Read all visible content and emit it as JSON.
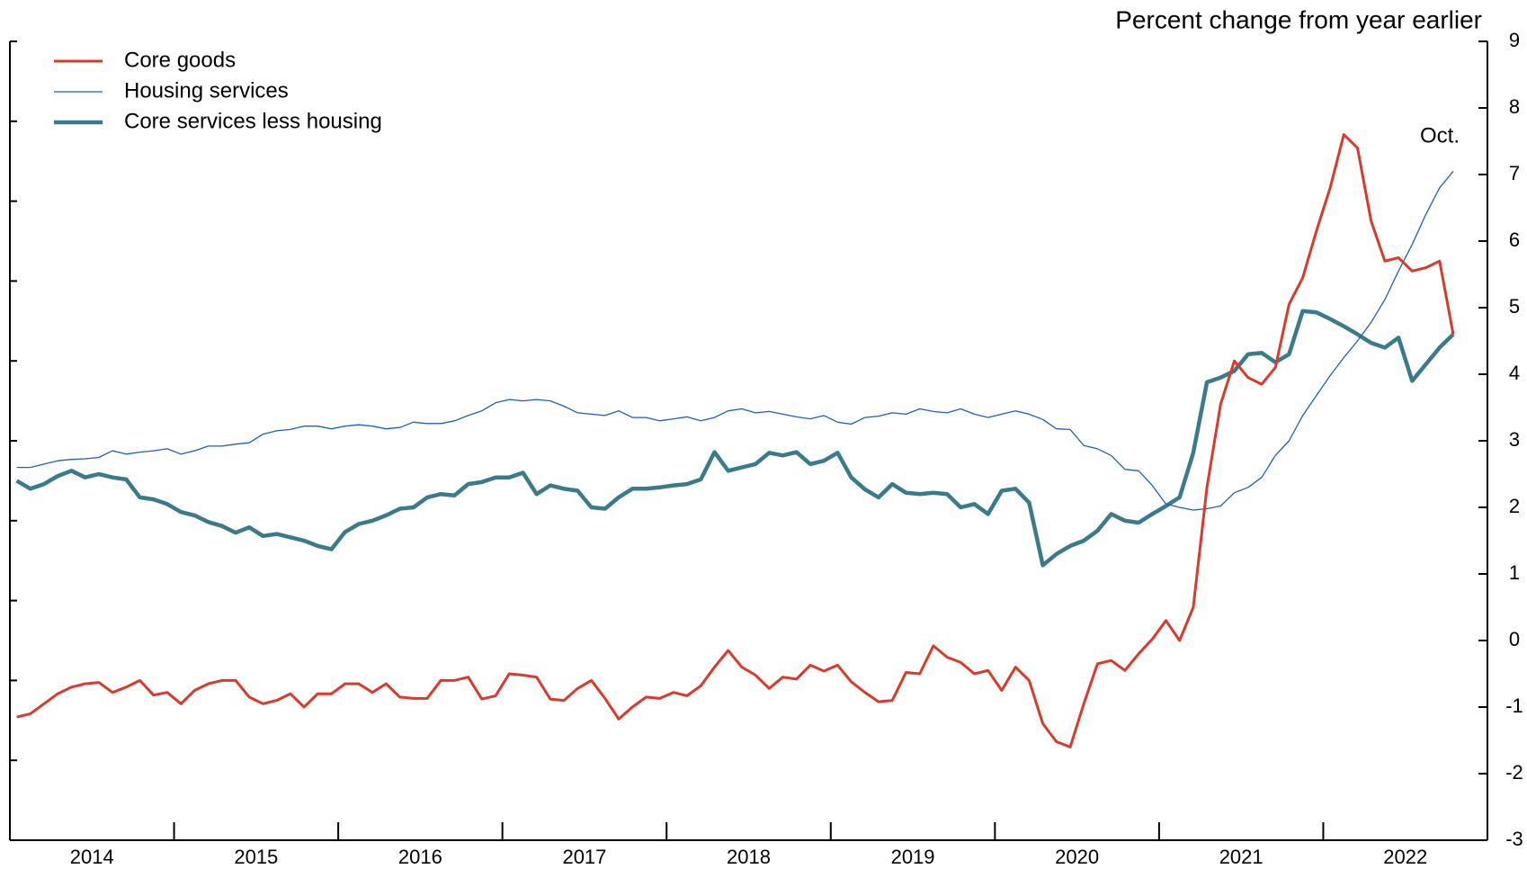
{
  "chart_data": {
    "type": "line",
    "axis_label": "Percent change from year earlier",
    "annotation": "Oct.",
    "x": [
      "2014-01",
      "2014-02",
      "2014-03",
      "2014-04",
      "2014-05",
      "2014-06",
      "2014-07",
      "2014-08",
      "2014-09",
      "2014-10",
      "2014-11",
      "2014-12",
      "2015-01",
      "2015-02",
      "2015-03",
      "2015-04",
      "2015-05",
      "2015-06",
      "2015-07",
      "2015-08",
      "2015-09",
      "2015-10",
      "2015-11",
      "2015-12",
      "2016-01",
      "2016-02",
      "2016-03",
      "2016-04",
      "2016-05",
      "2016-06",
      "2016-07",
      "2016-08",
      "2016-09",
      "2016-10",
      "2016-11",
      "2016-12",
      "2017-01",
      "2017-02",
      "2017-03",
      "2017-04",
      "2017-05",
      "2017-06",
      "2017-07",
      "2017-08",
      "2017-09",
      "2017-10",
      "2017-11",
      "2017-12",
      "2018-01",
      "2018-02",
      "2018-03",
      "2018-04",
      "2018-05",
      "2018-06",
      "2018-07",
      "2018-08",
      "2018-09",
      "2018-10",
      "2018-11",
      "2018-12",
      "2019-01",
      "2019-02",
      "2019-03",
      "2019-04",
      "2019-05",
      "2019-06",
      "2019-07",
      "2019-08",
      "2019-09",
      "2019-10",
      "2019-11",
      "2019-12",
      "2020-01",
      "2020-02",
      "2020-03",
      "2020-04",
      "2020-05",
      "2020-06",
      "2020-07",
      "2020-08",
      "2020-09",
      "2020-10",
      "2020-11",
      "2020-12",
      "2021-01",
      "2021-02",
      "2021-03",
      "2021-04",
      "2021-05",
      "2021-06",
      "2021-07",
      "2021-08",
      "2021-09",
      "2021-10",
      "2021-11",
      "2021-12",
      "2022-01",
      "2022-02",
      "2022-03",
      "2022-04",
      "2022-05",
      "2022-06",
      "2022-07",
      "2022-08",
      "2022-09",
      "2022-10"
    ],
    "x_year_labels": [
      "2014",
      "2015",
      "2016",
      "2017",
      "2018",
      "2019",
      "2020",
      "2021",
      "2022"
    ],
    "series": [
      {
        "name": "Core goods",
        "color": "#d93a2b",
        "width": 3,
        "values": [
          -1.15,
          -1.1,
          -0.95,
          -0.8,
          -0.7,
          -0.65,
          -0.63,
          -0.78,
          -0.7,
          -0.6,
          -0.82,
          -0.78,
          -0.95,
          -0.75,
          -0.65,
          -0.6,
          -0.6,
          -0.85,
          -0.95,
          -0.9,
          -0.8,
          -1.0,
          -0.8,
          -0.8,
          -0.65,
          -0.65,
          -0.78,
          -0.65,
          -0.85,
          -0.87,
          -0.87,
          -0.6,
          -0.6,
          -0.55,
          -0.88,
          -0.83,
          -0.5,
          -0.52,
          -0.55,
          -0.88,
          -0.9,
          -0.72,
          -0.6,
          -0.87,
          -1.18,
          -1.0,
          -0.85,
          -0.87,
          -0.78,
          -0.83,
          -0.68,
          -0.4,
          -0.15,
          -0.4,
          -0.52,
          -0.72,
          -0.55,
          -0.58,
          -0.37,
          -0.46,
          -0.37,
          -0.62,
          -0.78,
          -0.92,
          -0.9,
          -0.48,
          -0.5,
          -0.08,
          -0.25,
          -0.33,
          -0.5,
          -0.45,
          -0.75,
          -0.4,
          -0.6,
          -1.25,
          -1.52,
          -1.6,
          -0.95,
          -0.35,
          -0.3,
          -0.45,
          -0.2,
          0.02,
          0.3,
          0.0,
          0.5,
          2.3,
          3.55,
          4.2,
          3.95,
          3.85,
          4.1,
          5.05,
          5.45,
          6.15,
          6.8,
          7.6,
          7.4,
          6.3,
          5.7,
          5.75,
          5.55,
          5.6,
          5.7,
          4.6
        ]
      },
      {
        "name": "Housing services",
        "color": "#1f5fbf",
        "width": 1.3,
        "values": [
          2.6,
          2.6,
          2.65,
          2.7,
          2.72,
          2.73,
          2.75,
          2.85,
          2.8,
          2.83,
          2.85,
          2.88,
          2.8,
          2.85,
          2.92,
          2.92,
          2.95,
          2.97,
          3.1,
          3.15,
          3.17,
          3.22,
          3.22,
          3.18,
          3.22,
          3.24,
          3.22,
          3.18,
          3.2,
          3.28,
          3.26,
          3.26,
          3.3,
          3.38,
          3.45,
          3.57,
          3.62,
          3.6,
          3.62,
          3.6,
          3.52,
          3.42,
          3.4,
          3.38,
          3.45,
          3.35,
          3.35,
          3.3,
          3.33,
          3.36,
          3.3,
          3.35,
          3.45,
          3.48,
          3.42,
          3.44,
          3.4,
          3.36,
          3.33,
          3.38,
          3.28,
          3.25,
          3.35,
          3.37,
          3.42,
          3.4,
          3.48,
          3.44,
          3.42,
          3.48,
          3.4,
          3.35,
          3.4,
          3.45,
          3.4,
          3.32,
          3.18,
          3.17,
          2.93,
          2.88,
          2.78,
          2.57,
          2.55,
          2.33,
          2.05,
          2.0,
          1.96,
          1.98,
          2.02,
          2.22,
          2.3,
          2.45,
          2.78,
          3.0,
          3.38,
          3.68,
          3.98,
          4.25,
          4.5,
          4.78,
          5.12,
          5.55,
          5.95,
          6.4,
          6.8,
          7.05
        ]
      },
      {
        "name": "Core services less housing",
        "color": "#3b7a8a",
        "width": 4.5,
        "values": [
          2.4,
          2.28,
          2.35,
          2.47,
          2.55,
          2.45,
          2.5,
          2.45,
          2.42,
          2.15,
          2.12,
          2.05,
          1.93,
          1.88,
          1.78,
          1.72,
          1.62,
          1.7,
          1.57,
          1.6,
          1.55,
          1.5,
          1.42,
          1.37,
          1.63,
          1.75,
          1.8,
          1.88,
          1.98,
          2.0,
          2.15,
          2.2,
          2.18,
          2.35,
          2.38,
          2.45,
          2.45,
          2.52,
          2.2,
          2.33,
          2.28,
          2.25,
          2.0,
          1.98,
          2.15,
          2.28,
          2.28,
          2.3,
          2.33,
          2.35,
          2.42,
          2.83,
          2.55,
          2.6,
          2.65,
          2.82,
          2.78,
          2.83,
          2.65,
          2.7,
          2.82,
          2.45,
          2.27,
          2.15,
          2.35,
          2.22,
          2.2,
          2.22,
          2.2,
          2.0,
          2.05,
          1.9,
          2.25,
          2.28,
          2.07,
          1.13,
          1.3,
          1.42,
          1.5,
          1.65,
          1.9,
          1.8,
          1.77,
          1.9,
          2.02,
          2.15,
          2.82,
          3.88,
          3.95,
          4.05,
          4.3,
          4.32,
          4.18,
          4.3,
          4.95,
          4.93,
          4.83,
          4.72,
          4.6,
          4.47,
          4.4,
          4.55,
          3.9,
          4.15,
          4.4,
          4.6
        ]
      }
    ],
    "ylim": [
      -3,
      9
    ],
    "yticks": [
      -3,
      -2,
      -1,
      0,
      1,
      2,
      3,
      4,
      5,
      6,
      7,
      8,
      9
    ],
    "legend": "top-left"
  }
}
